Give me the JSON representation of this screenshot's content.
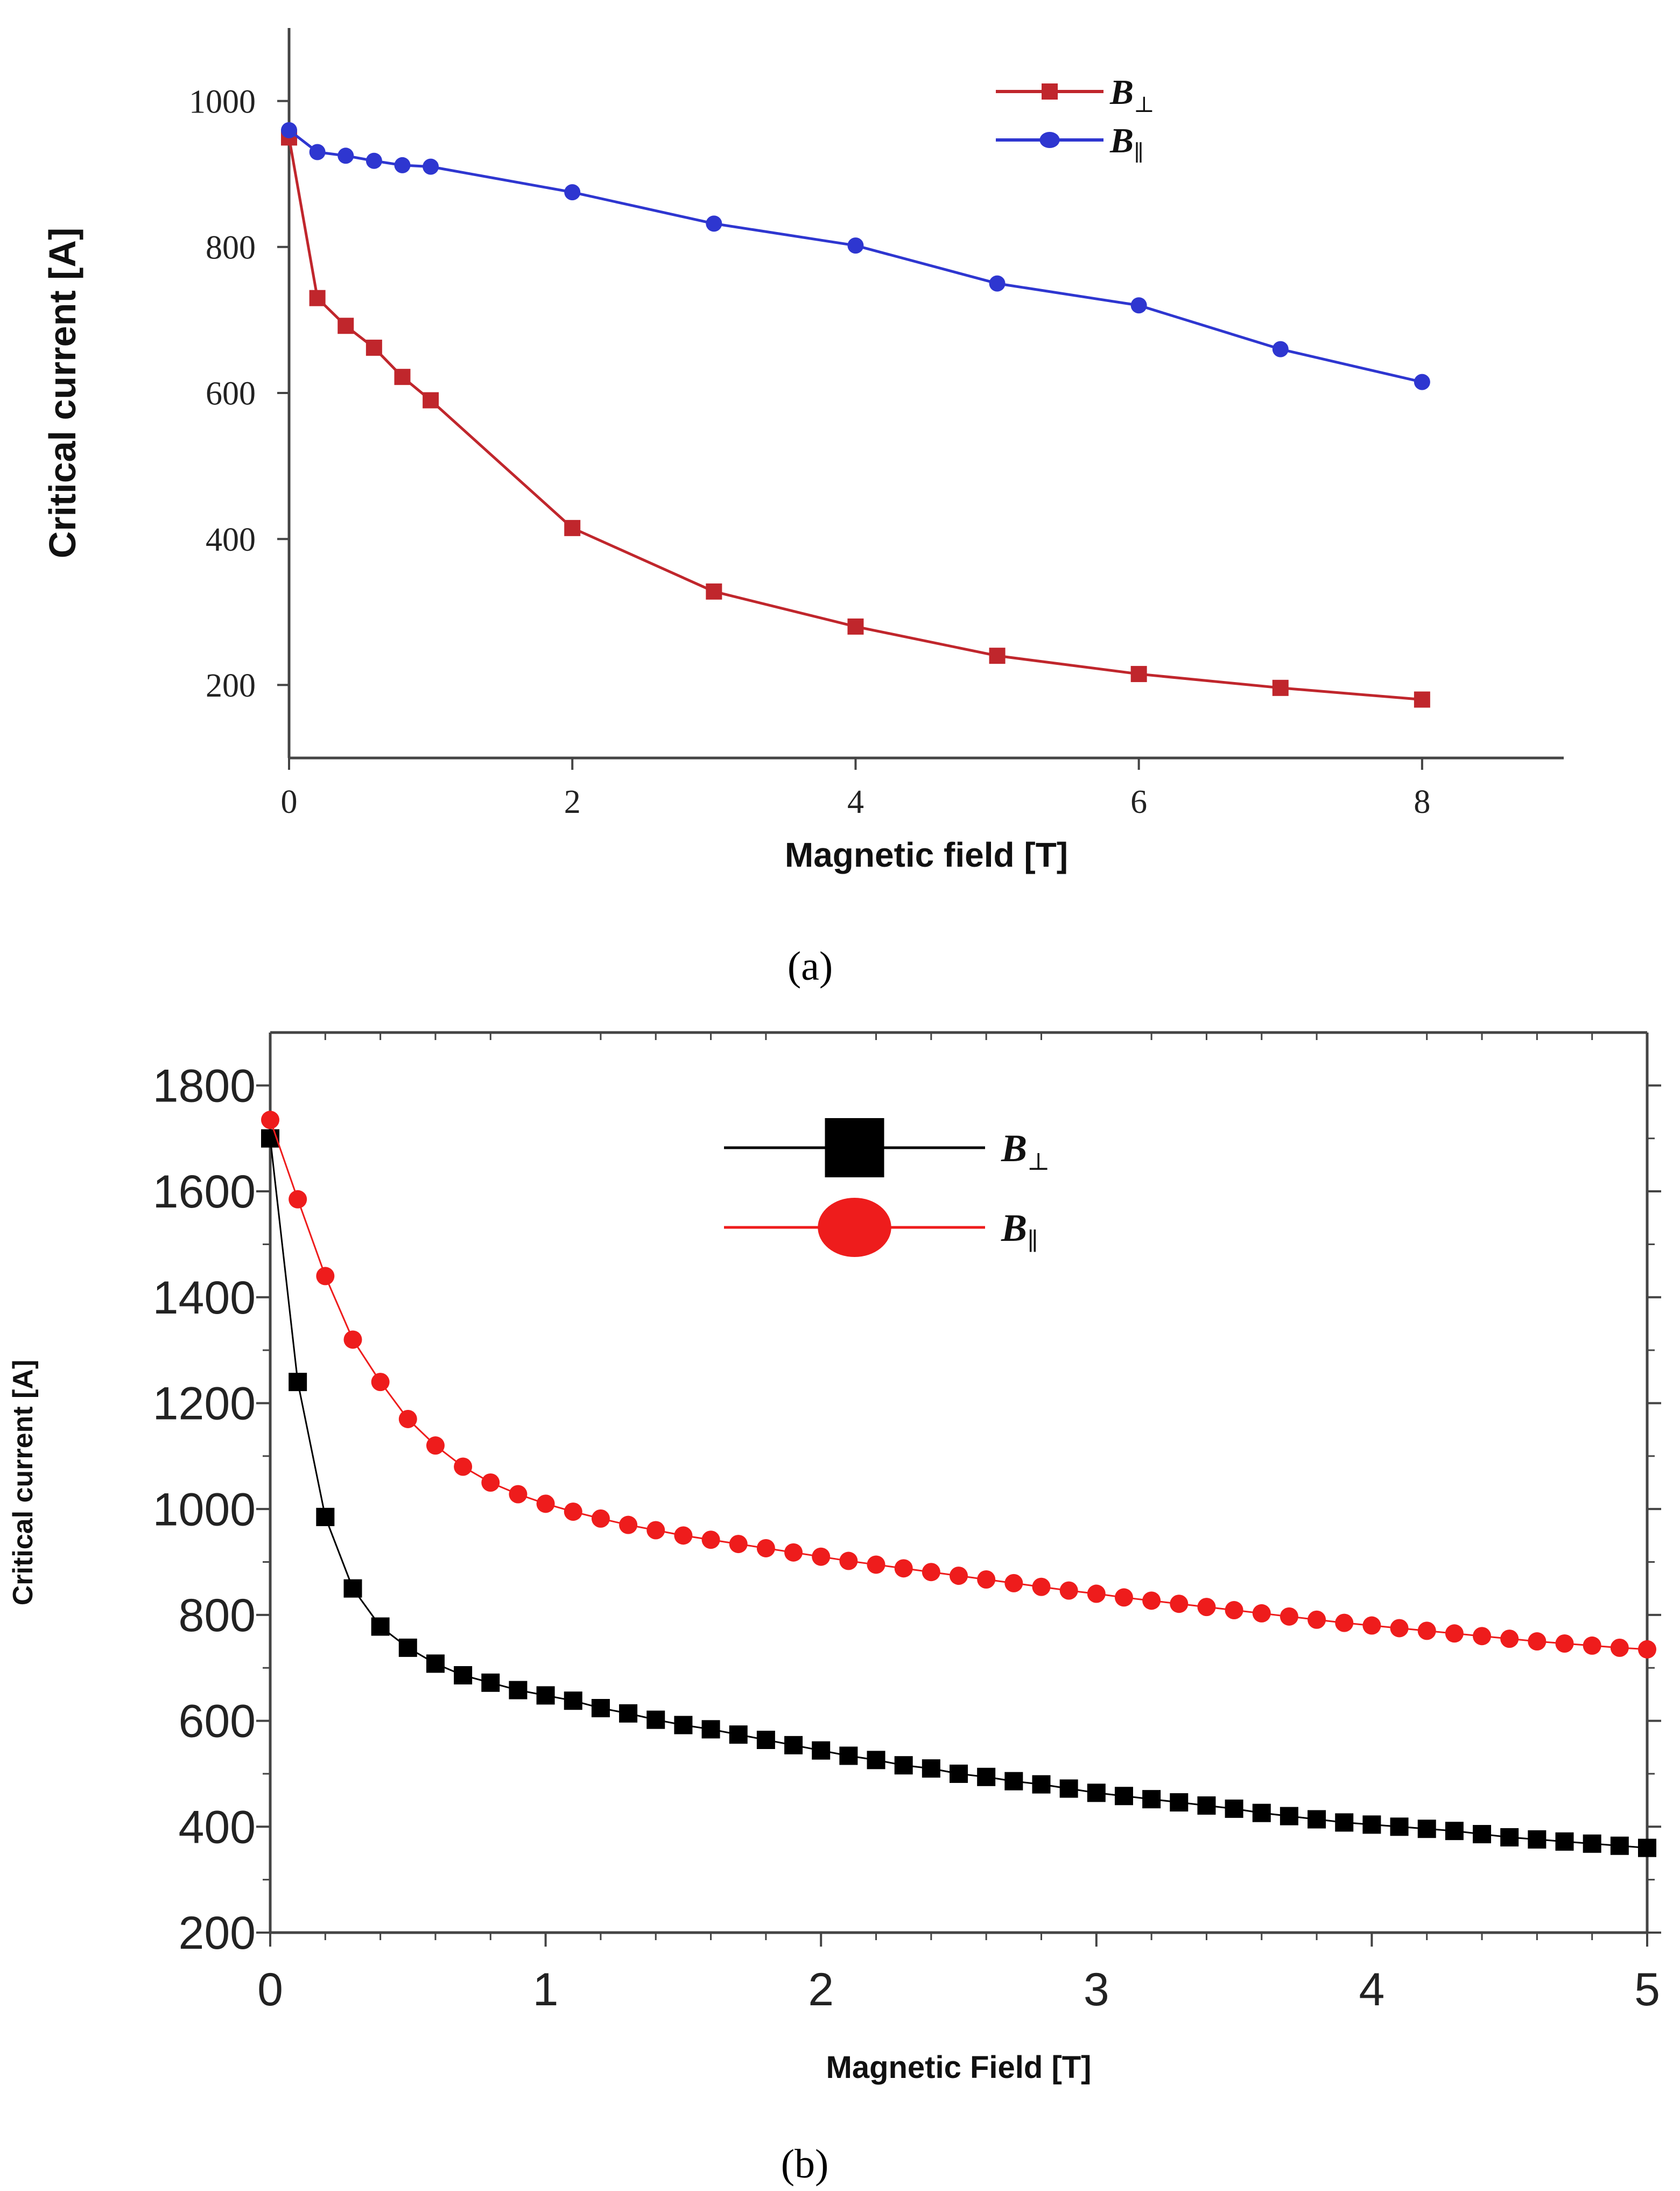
{
  "figure": {
    "panel_a_label": "(a)",
    "panel_b_label": "(b)"
  },
  "chart_data": [
    {
      "id": "a",
      "type": "line",
      "xlabel": "Magnetic field [T]",
      "ylabel": "Critical current [A]",
      "xlim": [
        0,
        9
      ],
      "ylim": [
        100,
        1100
      ],
      "xticks": [
        0,
        2,
        4,
        6,
        8
      ],
      "yticks": [
        200,
        400,
        600,
        800,
        1000
      ],
      "xtick_labels": [
        "0",
        "2",
        "4",
        "6",
        "8"
      ],
      "ytick_labels": [
        "200",
        "400",
        "600",
        "800",
        "1000"
      ],
      "legend_position": "top-right",
      "series": [
        {
          "name": "B⊥",
          "legend_base": "B",
          "legend_sub": "⊥",
          "color": "#c0262c",
          "marker": "square",
          "x": [
            0,
            0.2,
            0.4,
            0.6,
            0.8,
            1,
            2,
            3,
            4,
            5,
            6,
            7,
            8
          ],
          "values": [
            950,
            730,
            692,
            662,
            622,
            590,
            415,
            328,
            280,
            240,
            215,
            196,
            180
          ]
        },
        {
          "name": "B∥",
          "legend_base": "B",
          "legend_sub": "∥",
          "color": "#2e36d0",
          "marker": "circle",
          "x": [
            0,
            0.2,
            0.4,
            0.6,
            0.8,
            1,
            2,
            3,
            4,
            5,
            6,
            7,
            8
          ],
          "values": [
            960,
            930,
            925,
            918,
            912,
            910,
            875,
            832,
            802,
            750,
            720,
            660,
            615
          ]
        }
      ]
    },
    {
      "id": "b",
      "type": "scatter",
      "xlabel": "Magnetic Field [T]",
      "ylabel": "Critical current [A]",
      "xlim": [
        0,
        5
      ],
      "ylim": [
        200,
        1900
      ],
      "xticks": [
        0,
        1,
        2,
        3,
        4,
        5
      ],
      "yticks": [
        200,
        400,
        600,
        800,
        1000,
        1200,
        1400,
        1600,
        1800
      ],
      "xtick_labels": [
        "0",
        "1",
        "2",
        "3",
        "4",
        "5"
      ],
      "ytick_labels": [
        "200",
        "400",
        "600",
        "800",
        "1000",
        "1200",
        "1400",
        "1600",
        "1800"
      ],
      "legend_position": "top-center",
      "series": [
        {
          "name": "B⊥",
          "legend_base": "B",
          "legend_sub": "⊥",
          "color": "#000000",
          "marker": "square",
          "x": [
            0,
            0.1,
            0.2,
            0.3,
            0.4,
            0.5,
            0.6,
            0.7,
            0.8,
            0.9,
            1.0,
            1.1,
            1.2,
            1.3,
            1.4,
            1.5,
            1.6,
            1.7,
            1.8,
            1.9,
            2.0,
            2.1,
            2.2,
            2.3,
            2.4,
            2.5,
            2.6,
            2.7,
            2.8,
            2.9,
            3.0,
            3.1,
            3.2,
            3.3,
            3.4,
            3.5,
            3.6,
            3.7,
            3.8,
            3.9,
            4.0,
            4.1,
            4.2,
            4.3,
            4.4,
            4.5,
            4.6,
            4.7,
            4.8,
            4.9,
            5.0
          ],
          "values": [
            1700,
            1240,
            985,
            850,
            778,
            738,
            708,
            686,
            672,
            658,
            648,
            638,
            624,
            614,
            602,
            592,
            584,
            574,
            564,
            554,
            544,
            534,
            526,
            516,
            510,
            500,
            494,
            486,
            480,
            472,
            464,
            458,
            452,
            446,
            440,
            434,
            426,
            420,
            414,
            408,
            404,
            400,
            396,
            392,
            386,
            380,
            376,
            372,
            368,
            364,
            360
          ]
        },
        {
          "name": "B∥",
          "legend_base": "B",
          "legend_sub": "∥",
          "color": "#ee1c1c",
          "marker": "circle",
          "x": [
            0,
            0.1,
            0.2,
            0.3,
            0.4,
            0.5,
            0.6,
            0.7,
            0.8,
            0.9,
            1.0,
            1.1,
            1.2,
            1.3,
            1.4,
            1.5,
            1.6,
            1.7,
            1.8,
            1.9,
            2.0,
            2.1,
            2.2,
            2.3,
            2.4,
            2.5,
            2.6,
            2.7,
            2.8,
            2.9,
            3.0,
            3.1,
            3.2,
            3.3,
            3.4,
            3.5,
            3.6,
            3.7,
            3.8,
            3.9,
            4.0,
            4.1,
            4.2,
            4.3,
            4.4,
            4.5,
            4.6,
            4.7,
            4.8,
            4.9,
            5.0
          ],
          "values": [
            1735,
            1585,
            1440,
            1320,
            1240,
            1170,
            1120,
            1080,
            1050,
            1028,
            1010,
            995,
            982,
            970,
            960,
            950,
            942,
            934,
            926,
            918,
            910,
            902,
            895,
            888,
            881,
            874,
            867,
            860,
            853,
            846,
            840,
            833,
            827,
            821,
            815,
            809,
            803,
            797,
            791,
            785,
            780,
            775,
            770,
            765,
            760,
            755,
            750,
            746,
            742,
            738,
            735
          ]
        }
      ]
    }
  ]
}
